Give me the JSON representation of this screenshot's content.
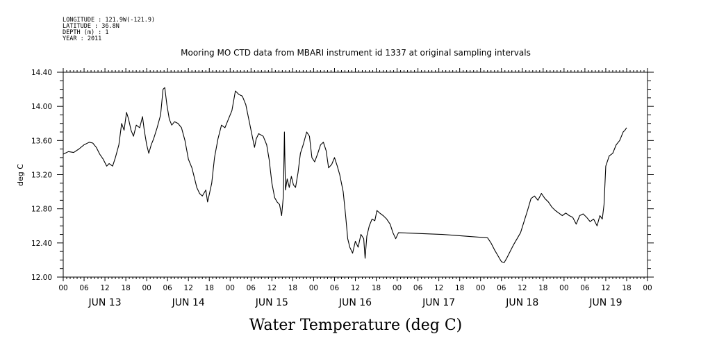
{
  "header": {
    "info_lines": [
      "LONGITUDE : 121.9W(-121.9)",
      "LATITUDE : 36.8N",
      "DEPTH (m) : 1",
      "YEAR : 2011"
    ]
  },
  "chart_data": {
    "type": "line",
    "title": "Mooring MO CTD data from MBARI instrument id 1337 at original sampling intervals",
    "xlabel": "Water Temperature (deg C)",
    "ylabel": "deg C",
    "ylim": [
      12.0,
      14.4
    ],
    "yticks": [
      "12.00",
      "12.40",
      "12.80",
      "13.20",
      "13.60",
      "14.00",
      "14.40"
    ],
    "xlim_hours": [
      0,
      168
    ],
    "xtick_hour_labels": [
      "00",
      "06",
      "12",
      "18",
      "00",
      "06",
      "12",
      "18",
      "00",
      "06",
      "12",
      "18",
      "00",
      "06",
      "12",
      "18",
      "00",
      "06",
      "12",
      "18",
      "00",
      "06",
      "12",
      "18",
      "00",
      "06",
      "12",
      "18",
      "00"
    ],
    "day_labels": [
      "JUN 13",
      "JUN 14",
      "JUN 15",
      "JUN 16",
      "JUN 17",
      "JUN 18",
      "JUN 19"
    ],
    "grid": false,
    "series": [
      {
        "name": "",
        "color": "#000000",
        "points": [
          [
            0,
            13.44
          ],
          [
            1.5,
            13.47
          ],
          [
            3,
            13.46
          ],
          [
            4.5,
            13.5
          ],
          [
            6,
            13.55
          ],
          [
            7.5,
            13.58
          ],
          [
            8.5,
            13.57
          ],
          [
            9.5,
            13.52
          ],
          [
            10.5,
            13.44
          ],
          [
            11.5,
            13.38
          ],
          [
            12.5,
            13.3
          ],
          [
            13.2,
            13.33
          ],
          [
            14.2,
            13.3
          ],
          [
            15,
            13.4
          ],
          [
            16,
            13.55
          ],
          [
            16.8,
            13.8
          ],
          [
            17.5,
            13.72
          ],
          [
            18.2,
            13.93
          ],
          [
            18.8,
            13.85
          ],
          [
            19.5,
            13.72
          ],
          [
            20.2,
            13.65
          ],
          [
            21,
            13.78
          ],
          [
            22,
            13.75
          ],
          [
            22.8,
            13.88
          ],
          [
            23.3,
            13.72
          ],
          [
            24,
            13.55
          ],
          [
            24.6,
            13.45
          ],
          [
            25.3,
            13.55
          ],
          [
            26,
            13.62
          ],
          [
            27,
            13.75
          ],
          [
            28,
            13.9
          ],
          [
            28.7,
            14.2
          ],
          [
            29.2,
            14.22
          ],
          [
            29.8,
            14.02
          ],
          [
            30.5,
            13.85
          ],
          [
            31.2,
            13.78
          ],
          [
            32,
            13.82
          ],
          [
            33,
            13.8
          ],
          [
            34,
            13.75
          ],
          [
            35,
            13.6
          ],
          [
            36,
            13.38
          ],
          [
            37,
            13.28
          ],
          [
            37.8,
            13.15
          ],
          [
            38.4,
            13.05
          ],
          [
            39.2,
            12.98
          ],
          [
            40,
            12.95
          ],
          [
            41,
            13.02
          ],
          [
            41.5,
            12.88
          ],
          [
            42,
            12.97
          ],
          [
            42.7,
            13.1
          ],
          [
            43.5,
            13.4
          ],
          [
            44.5,
            13.62
          ],
          [
            45.5,
            13.78
          ],
          [
            46.5,
            13.75
          ],
          [
            47.5,
            13.85
          ],
          [
            48.5,
            13.95
          ],
          [
            49.5,
            14.18
          ],
          [
            50.5,
            14.14
          ],
          [
            51.5,
            14.12
          ],
          [
            52.5,
            14.02
          ],
          [
            53.5,
            13.82
          ],
          [
            54.2,
            13.68
          ],
          [
            55,
            13.52
          ],
          [
            55.5,
            13.62
          ],
          [
            56.2,
            13.68
          ],
          [
            57.5,
            13.65
          ],
          [
            58.5,
            13.55
          ],
          [
            59.2,
            13.38
          ],
          [
            60,
            13.1
          ],
          [
            60.8,
            12.93
          ],
          [
            61.5,
            12.88
          ],
          [
            62.2,
            12.85
          ],
          [
            62.8,
            12.72
          ],
          [
            63.3,
            12.95
          ],
          [
            63.6,
            13.7
          ],
          [
            63.9,
            13.02
          ],
          [
            64.4,
            13.15
          ],
          [
            65,
            13.05
          ],
          [
            65.6,
            13.18
          ],
          [
            66.2,
            13.08
          ],
          [
            66.8,
            13.05
          ],
          [
            67.5,
            13.22
          ],
          [
            68.2,
            13.45
          ],
          [
            69,
            13.55
          ],
          [
            70,
            13.7
          ],
          [
            70.8,
            13.65
          ],
          [
            71.5,
            13.4
          ],
          [
            72.3,
            13.35
          ],
          [
            73.2,
            13.45
          ],
          [
            74,
            13.55
          ],
          [
            74.8,
            13.58
          ],
          [
            75.6,
            13.48
          ],
          [
            76.3,
            13.28
          ],
          [
            77.2,
            13.32
          ],
          [
            78,
            13.4
          ],
          [
            78.8,
            13.3
          ],
          [
            79.5,
            13.2
          ],
          [
            80.5,
            13.0
          ],
          [
            81.2,
            12.72
          ],
          [
            81.8,
            12.45
          ],
          [
            82.4,
            12.35
          ],
          [
            83.2,
            12.28
          ],
          [
            84,
            12.42
          ],
          [
            84.8,
            12.35
          ],
          [
            85.6,
            12.5
          ],
          [
            86.4,
            12.45
          ],
          [
            86.8,
            12.22
          ],
          [
            87.3,
            12.48
          ],
          [
            88,
            12.6
          ],
          [
            88.8,
            12.68
          ],
          [
            89.6,
            12.66
          ],
          [
            90.2,
            12.78
          ],
          [
            91,
            12.75
          ],
          [
            92,
            12.72
          ],
          [
            93,
            12.68
          ],
          [
            94,
            12.62
          ],
          [
            94.8,
            12.52
          ],
          [
            95.6,
            12.45
          ],
          [
            96.4,
            12.52
          ],
          [
            109,
            12.5
          ],
          [
            122,
            12.46
          ],
          [
            123,
            12.4
          ],
          [
            124,
            12.32
          ],
          [
            125,
            12.25
          ],
          [
            126,
            12.18
          ],
          [
            126.8,
            12.17
          ],
          [
            127.5,
            12.22
          ],
          [
            128.5,
            12.3
          ],
          [
            129.5,
            12.38
          ],
          [
            130.5,
            12.45
          ],
          [
            131.5,
            12.52
          ],
          [
            132.5,
            12.65
          ],
          [
            133.5,
            12.78
          ],
          [
            134.5,
            12.92
          ],
          [
            135.5,
            12.95
          ],
          [
            136.5,
            12.9
          ],
          [
            137.5,
            12.98
          ],
          [
            138.5,
            12.92
          ],
          [
            139.5,
            12.88
          ],
          [
            140.5,
            12.82
          ],
          [
            141.5,
            12.78
          ],
          [
            142.5,
            12.75
          ],
          [
            143.5,
            12.72
          ],
          [
            144.5,
            12.75
          ],
          [
            145.5,
            12.72
          ],
          [
            146.5,
            12.7
          ],
          [
            147.5,
            12.62
          ],
          [
            148.5,
            12.72
          ],
          [
            149.5,
            12.74
          ],
          [
            150.5,
            12.7
          ],
          [
            151.5,
            12.65
          ],
          [
            152.5,
            12.68
          ],
          [
            153.5,
            12.6
          ],
          [
            154.3,
            12.72
          ],
          [
            155,
            12.68
          ],
          [
            155.5,
            12.85
          ],
          [
            156,
            13.3
          ],
          [
            157,
            13.42
          ],
          [
            158,
            13.45
          ],
          [
            159,
            13.55
          ],
          [
            160,
            13.6
          ],
          [
            160.5,
            13.65
          ],
          [
            161,
            13.7
          ],
          [
            161.5,
            13.72
          ],
          [
            162,
            13.75
          ]
        ]
      }
    ]
  }
}
